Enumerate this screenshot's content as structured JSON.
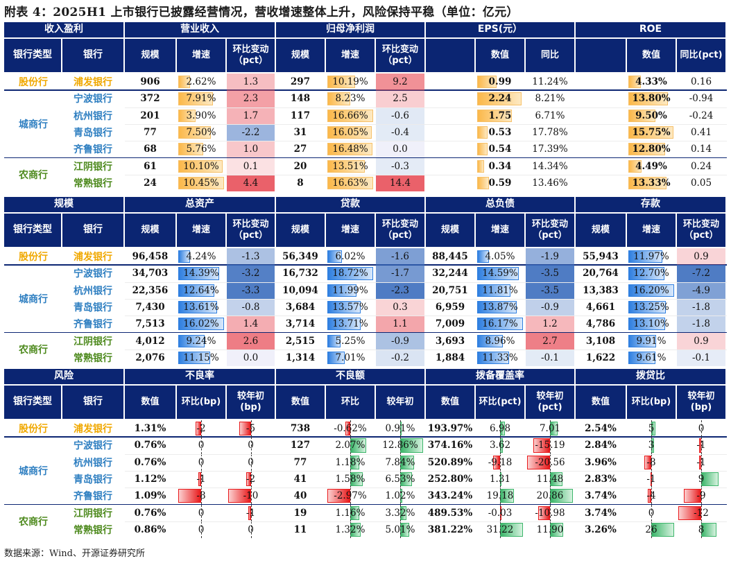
{
  "title": "附表 4：2025H1 上市银行已披露经营情况，营收增速整体上升，风险保持平稳（单位：亿元）",
  "source": "数据来源：Wind、开源证券研究所",
  "colors": {
    "header": "#0b2572",
    "joint_stock": "#f0a800",
    "city": "#2f7fc1",
    "rural": "#4e8a1e",
    "orange_bar": "#fcc86a",
    "red": "#e8191b",
    "green": "#3cb56a",
    "blue_bar": "#3a8ee6"
  },
  "types": [
    {
      "label": "股份行",
      "color": "#f0a800",
      "rows": [
        0,
        0
      ]
    },
    {
      "label": "城商行",
      "color": "#2f7fc1",
      "rows": [
        1,
        4
      ]
    },
    {
      "label": "农商行",
      "color": "#4e8a1e",
      "rows": [
        5,
        6
      ]
    }
  ],
  "banks": [
    {
      "name": "浦发银行",
      "type": 0
    },
    {
      "name": "宁波银行",
      "type": 1
    },
    {
      "name": "杭州银行",
      "type": 1
    },
    {
      "name": "青岛银行",
      "type": 1
    },
    {
      "name": "齐鲁银行",
      "type": 1
    },
    {
      "name": "江阴银行",
      "type": 2
    },
    {
      "name": "常熟银行",
      "type": 2
    }
  ],
  "sections": [
    {
      "label": "收入盈利",
      "groups": [
        {
          "label": "营业收入",
          "cols": [
            {
              "label": "规模"
            },
            {
              "label": "增速"
            },
            {
              "label": "环比变动",
              "sub": "（pct）"
            }
          ]
        },
        {
          "label": "归母净利润",
          "cols": [
            {
              "label": "规模"
            },
            {
              "label": "增速"
            },
            {
              "label": "环比变动",
              "sub": "（pct）"
            }
          ]
        },
        {
          "label": "EPS(元）",
          "cols": [
            {
              "label": "数值"
            },
            {
              "label": "同比"
            }
          ]
        },
        {
          "label": "ROE",
          "cols": [
            {
              "label": "数值"
            },
            {
              "label": "同比(pct)"
            }
          ]
        }
      ],
      "rows": [
        [
          "906",
          "2.62%",
          "1.3",
          "297",
          "10.19%",
          "9.2",
          "0.99",
          "11.24%",
          "4.33%",
          "0.16"
        ],
        [
          "372",
          "7.91%",
          "2.3",
          "148",
          "8.23%",
          "2.5",
          "2.24",
          "8.21%",
          "13.80%",
          "-0.94"
        ],
        [
          "201",
          "3.90%",
          "1.7",
          "117",
          "16.66%",
          "-0.6",
          "1.75",
          "6.71%",
          "9.50%",
          "-0.24"
        ],
        [
          "77",
          "7.50%",
          "-2.2",
          "31",
          "16.05%",
          "-0.4",
          "0.53",
          "17.78%",
          "15.75%",
          "0.41"
        ],
        [
          "68",
          "5.76%",
          "1.0",
          "27",
          "16.48%",
          "0.0",
          "0.54",
          "17.39%",
          "12.80%",
          "0.14"
        ],
        [
          "61",
          "10.10%",
          "0.1",
          "20",
          "13.51%",
          "-0.3",
          "0.34",
          "14.34%",
          "4.49%",
          "0.24"
        ],
        [
          "24",
          "10.45%",
          "4.4",
          "8",
          "16.63%",
          "14.4",
          "0.59",
          "13.46%",
          "13.33%",
          "0.05"
        ]
      ]
    },
    {
      "label": "规模",
      "groups": [
        {
          "label": "总资产",
          "cols": [
            {
              "label": "规模"
            },
            {
              "label": "增速"
            },
            {
              "label": "环比变动",
              "sub": "（pct）"
            }
          ]
        },
        {
          "label": "贷款",
          "cols": [
            {
              "label": "规模"
            },
            {
              "label": "增速"
            },
            {
              "label": "环比变动",
              "sub": "（pct）"
            }
          ]
        },
        {
          "label": "总负债",
          "cols": [
            {
              "label": "规模"
            },
            {
              "label": "增速"
            },
            {
              "label": "环比变动",
              "sub": "（pct）"
            }
          ]
        },
        {
          "label": "存款",
          "cols": [
            {
              "label": "规模"
            },
            {
              "label": "增速"
            },
            {
              "label": "环比变动",
              "sub": "（pct）"
            }
          ]
        }
      ],
      "rows": [
        [
          "96,458",
          "4.24%",
          "-1.3",
          "56,349",
          "6.02%",
          "-1.6",
          "88,445",
          "4.05%",
          "-1.9",
          "55,943",
          "11.97%",
          "0.9"
        ],
        [
          "34,703",
          "14.39%",
          "-3.2",
          "16,732",
          "18.72%",
          "-1.7",
          "32,244",
          "14.59%",
          "-3.5",
          "20,764",
          "12.70%",
          "-7.2"
        ],
        [
          "22,356",
          "12.64%",
          "-3.3",
          "10,094",
          "11.99%",
          "-2.3",
          "20,751",
          "11.81%",
          "-3.5",
          "13,383",
          "16.20%",
          "-4.9"
        ],
        [
          "7,430",
          "13.61%",
          "-0.8",
          "3,684",
          "13.57%",
          "0.3",
          "6,959",
          "13.87%",
          "-0.9",
          "4,661",
          "13.25%",
          "-1.8"
        ],
        [
          "7,513",
          "16.02%",
          "1.4",
          "3,714",
          "13.71%",
          "1.1",
          "7,009",
          "16.17%",
          "1.2",
          "4,786",
          "13.10%",
          "-1.8"
        ],
        [
          "4,012",
          "9.24%",
          "2.6",
          "2,515",
          "5.25%",
          "-0.9",
          "3,693",
          "8.96%",
          "2.7",
          "3,108",
          "9.91%",
          "0.9"
        ],
        [
          "2,076",
          "11.15%",
          "0.0",
          "1,314",
          "7.01%",
          "-0.2",
          "1,884",
          "11.33%",
          "-0.1",
          "1,622",
          "9.61%",
          "-0.1"
        ]
      ]
    },
    {
      "label": "风险",
      "groups": [
        {
          "label": "不良率",
          "cols": [
            {
              "label": "数值"
            },
            {
              "label": "环比(bp)"
            },
            {
              "label": "较年初",
              "sub": "(bp)"
            }
          ]
        },
        {
          "label": "不良额",
          "cols": [
            {
              "label": "数值"
            },
            {
              "label": "环比"
            },
            {
              "label": "较年初"
            }
          ]
        },
        {
          "label": "拨备覆盖率",
          "cols": [
            {
              "label": "数值"
            },
            {
              "label": "环比(pct)"
            },
            {
              "label": "较年初",
              "sub": "(pct)"
            }
          ]
        },
        {
          "label": "拨贷比",
          "cols": [
            {
              "label": "数值"
            },
            {
              "label": "环比(bp)"
            },
            {
              "label": "较年初",
              "sub": "(bp)"
            }
          ]
        }
      ],
      "rows": [
        [
          "1.31%",
          "-2",
          "-5",
          "738",
          "-0.62%",
          "0.91%",
          "193.97%",
          "6.98",
          "7.01",
          "2.54%",
          "5",
          "0"
        ],
        [
          "0.76%",
          "0",
          "0",
          "127",
          "2.07%",
          "12.86%",
          "374.16%",
          "3.62",
          "-15.19",
          "2.84%",
          "3",
          "-1"
        ],
        [
          "0.76%",
          "0",
          "0",
          "77",
          "1.18%",
          "7.84%",
          "520.89%",
          "-9.18",
          "-20.56",
          "3.96%",
          "-8",
          "-1"
        ],
        [
          "1.12%",
          "-1",
          "-2",
          "41",
          "1.58%",
          "6.53%",
          "252.80%",
          "1.31",
          "11.48",
          "2.83%",
          "-1",
          "9"
        ],
        [
          "1.09%",
          "-8",
          "-10",
          "40",
          "-2.97%",
          "1.02%",
          "343.24%",
          "19.18",
          "20.86",
          "3.74%",
          "-4",
          "-9"
        ],
        [
          "0.76%",
          "0",
          "-1",
          "19",
          "1.16%",
          "3.32%",
          "489.53%",
          "-0.03",
          "-10.98",
          "3.74%",
          "0",
          "-12"
        ],
        [
          "0.86%",
          "0",
          "0",
          "11",
          "1.32%",
          "5.01%",
          "381.22%",
          "31.22",
          "11.90",
          "3.26%",
          "26",
          "8"
        ]
      ]
    }
  ]
}
